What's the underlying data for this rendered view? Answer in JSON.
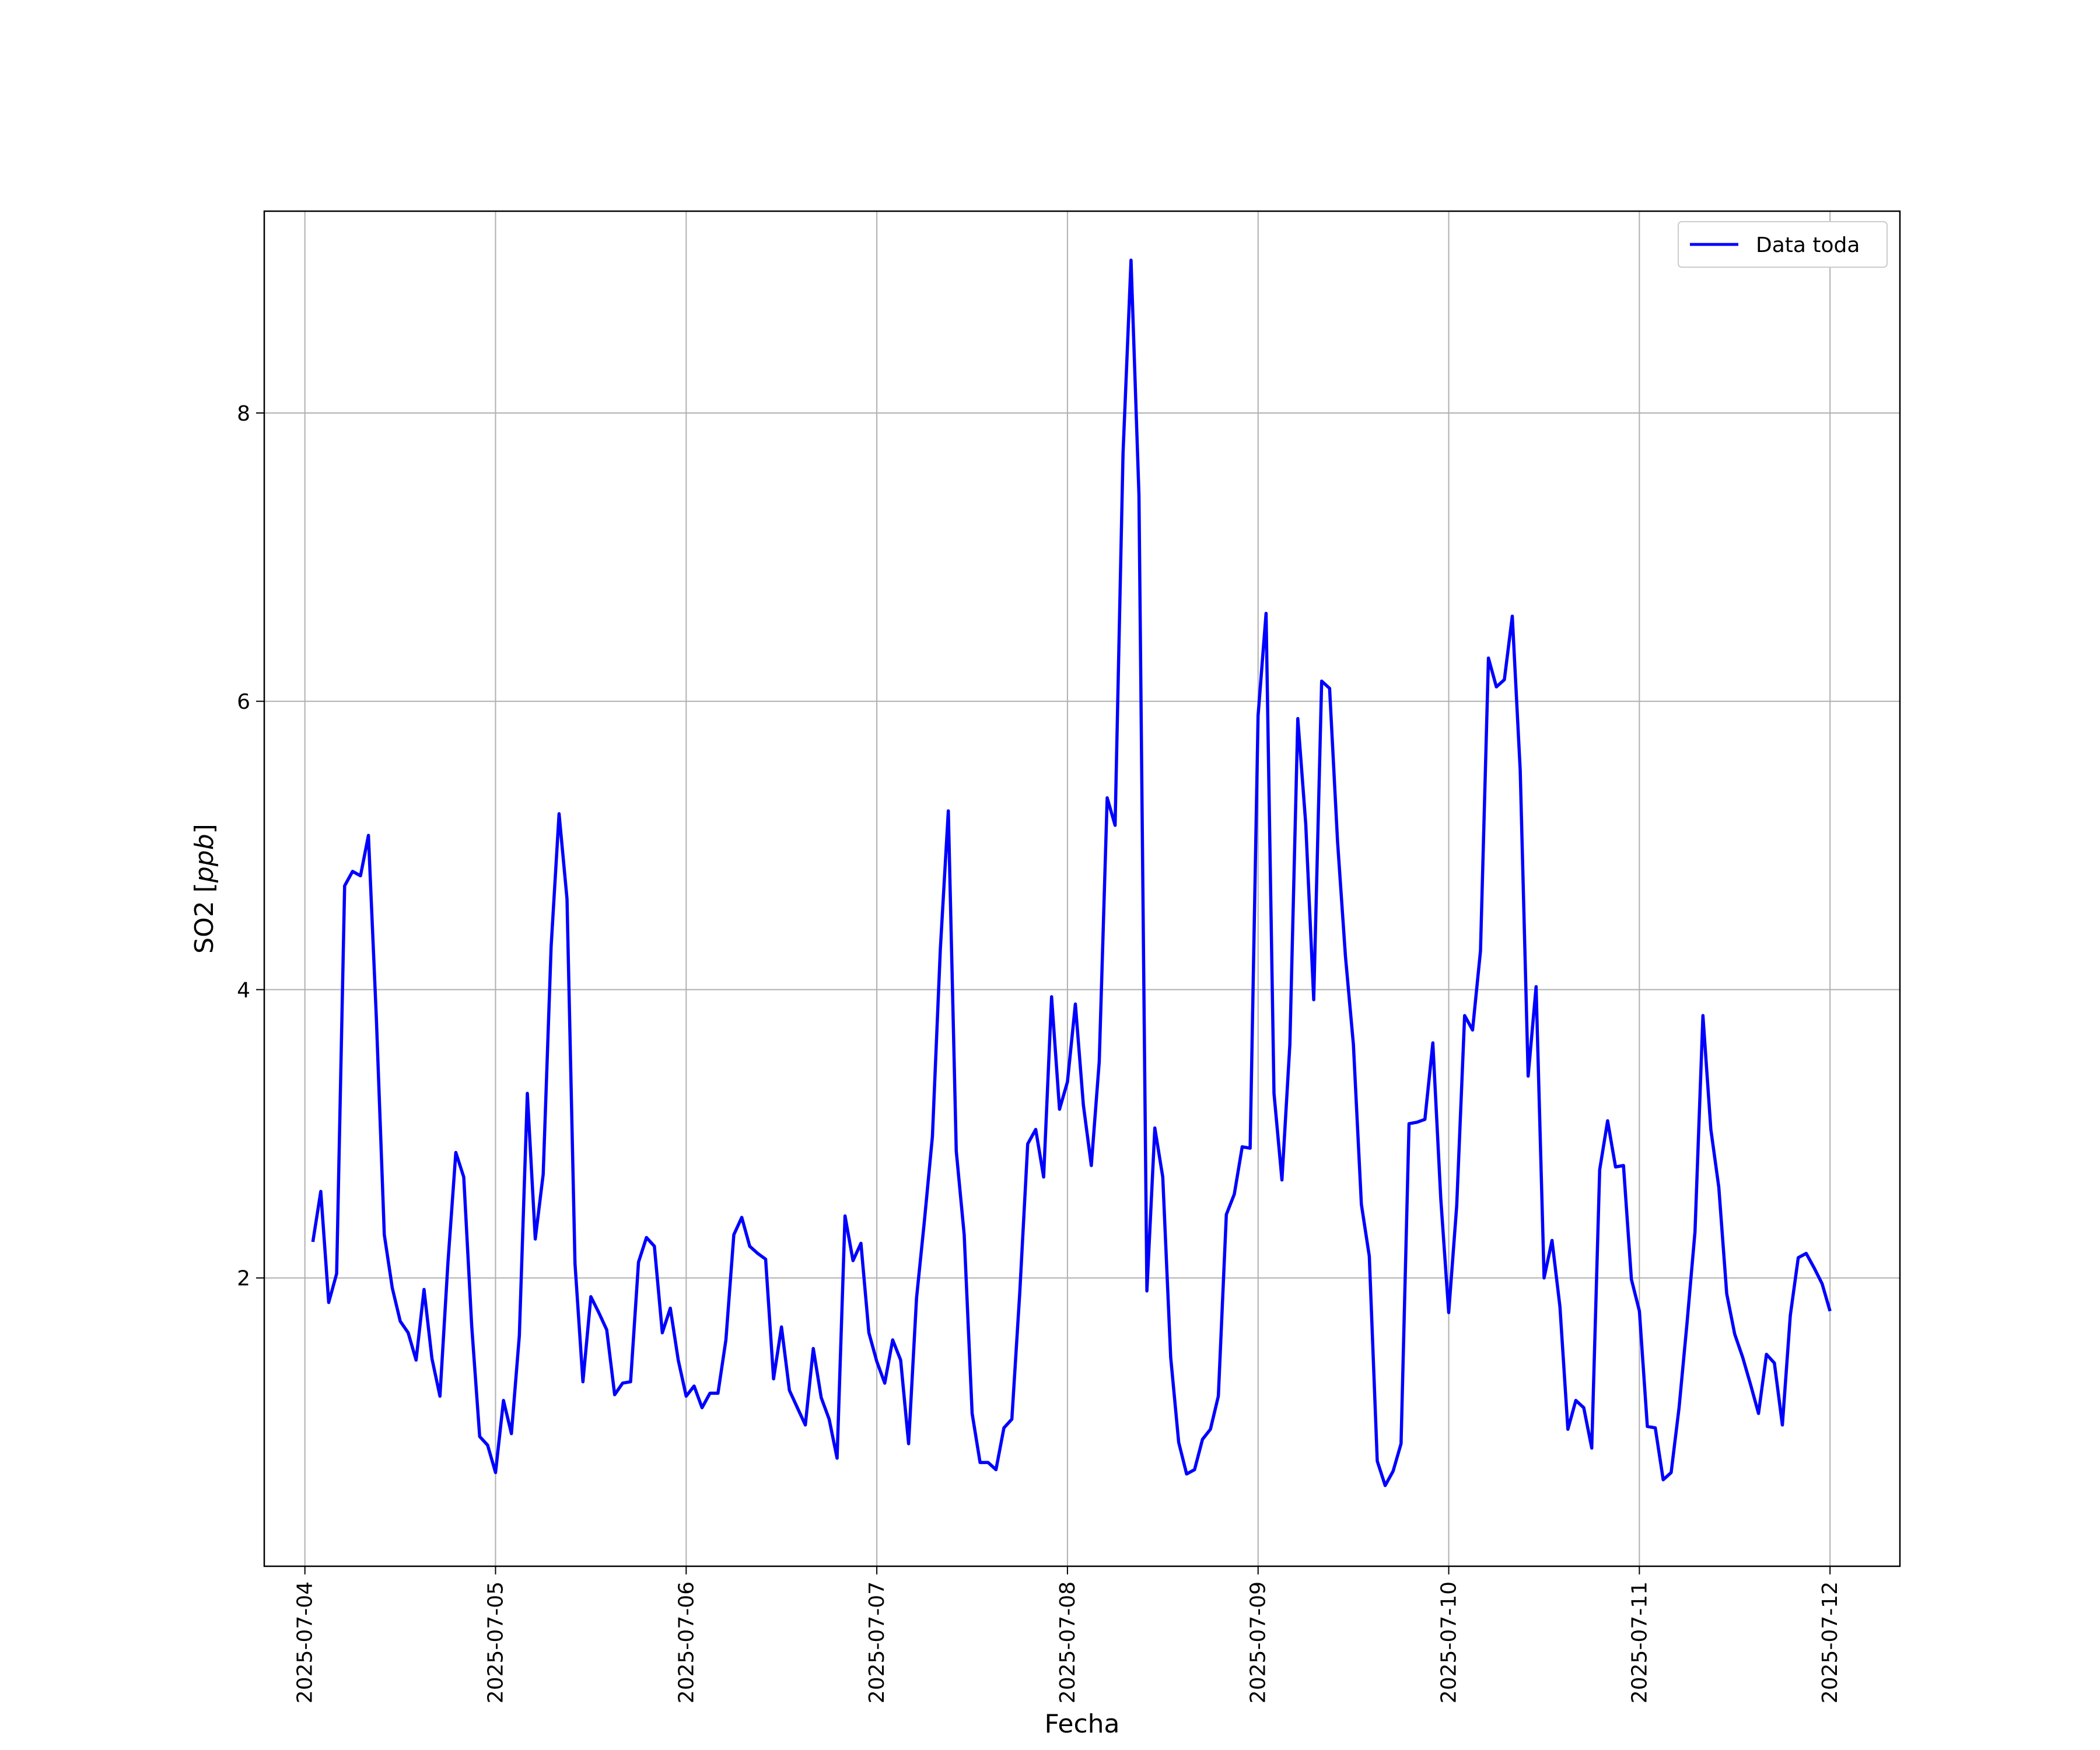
{
  "chart_data": {
    "type": "line",
    "title": "",
    "xlabel": "Fecha",
    "ylabel": "SO2 [ppb]",
    "ylabel_parts": {
      "prefix": "SO2 [",
      "unit": "ppb",
      "suffix": "]"
    },
    "x_axis_type": "date",
    "xlim": [
      "2025-07-03 18:53",
      "2025-07-12 08:48"
    ],
    "ylim": [
      0,
      9.4
    ],
    "grid": true,
    "legend_position": "upper right",
    "x_ticks": [
      "2025-07-04",
      "2025-07-05",
      "2025-07-06",
      "2025-07-07",
      "2025-07-08",
      "2025-07-09",
      "2025-07-10",
      "2025-07-11",
      "2025-07-12"
    ],
    "y_ticks": [
      2,
      4,
      6,
      8
    ],
    "series": [
      {
        "name": "Data toda",
        "color": "#0000ff",
        "x": [
          "2025-07-04 01:00",
          "2025-07-04 02:00",
          "2025-07-04 03:00",
          "2025-07-04 04:00",
          "2025-07-04 05:00",
          "2025-07-04 06:00",
          "2025-07-04 07:00",
          "2025-07-04 08:00",
          "2025-07-04 09:00",
          "2025-07-04 10:00",
          "2025-07-04 11:00",
          "2025-07-04 12:00",
          "2025-07-04 13:00",
          "2025-07-04 14:00",
          "2025-07-04 15:00",
          "2025-07-04 16:00",
          "2025-07-04 17:00",
          "2025-07-04 18:00",
          "2025-07-04 19:00",
          "2025-07-04 20:00",
          "2025-07-04 21:00",
          "2025-07-04 22:00",
          "2025-07-04 23:00",
          "2025-07-05 00:00",
          "2025-07-05 01:00",
          "2025-07-05 02:00",
          "2025-07-05 03:00",
          "2025-07-05 04:00",
          "2025-07-05 05:00",
          "2025-07-05 06:00",
          "2025-07-05 07:00",
          "2025-07-05 08:00",
          "2025-07-05 09:00",
          "2025-07-05 10:00",
          "2025-07-05 11:00",
          "2025-07-05 12:00",
          "2025-07-05 13:00",
          "2025-07-05 14:00",
          "2025-07-05 15:00",
          "2025-07-05 16:00",
          "2025-07-05 17:00",
          "2025-07-05 18:00",
          "2025-07-05 19:00",
          "2025-07-05 20:00",
          "2025-07-05 21:00",
          "2025-07-05 22:00",
          "2025-07-05 23:00",
          "2025-07-06 00:00",
          "2025-07-06 01:00",
          "2025-07-06 02:00",
          "2025-07-06 03:00",
          "2025-07-06 04:00",
          "2025-07-06 05:00",
          "2025-07-06 06:00",
          "2025-07-06 07:00",
          "2025-07-06 08:00",
          "2025-07-06 09:00",
          "2025-07-06 10:00",
          "2025-07-06 11:00",
          "2025-07-06 12:00",
          "2025-07-06 13:00",
          "2025-07-06 14:00",
          "2025-07-06 15:00",
          "2025-07-06 16:00",
          "2025-07-06 17:00",
          "2025-07-06 18:00",
          "2025-07-06 19:00",
          "2025-07-06 20:00",
          "2025-07-06 21:00",
          "2025-07-06 22:00",
          "2025-07-06 23:00",
          "2025-07-07 00:00",
          "2025-07-07 01:00",
          "2025-07-07 02:00",
          "2025-07-07 03:00",
          "2025-07-07 04:00",
          "2025-07-07 05:00",
          "2025-07-07 06:00",
          "2025-07-07 07:00",
          "2025-07-07 08:00",
          "2025-07-07 09:00",
          "2025-07-07 10:00",
          "2025-07-07 11:00",
          "2025-07-07 12:00",
          "2025-07-07 13:00",
          "2025-07-07 14:00",
          "2025-07-07 15:00",
          "2025-07-07 16:00",
          "2025-07-07 17:00",
          "2025-07-07 18:00",
          "2025-07-07 19:00",
          "2025-07-07 20:00",
          "2025-07-07 21:00",
          "2025-07-07 22:00",
          "2025-07-07 23:00",
          "2025-07-08 00:00",
          "2025-07-08 01:00",
          "2025-07-08 02:00",
          "2025-07-08 03:00",
          "2025-07-08 04:00",
          "2025-07-08 05:00",
          "2025-07-08 06:00",
          "2025-07-08 07:00",
          "2025-07-08 08:00",
          "2025-07-08 09:00",
          "2025-07-08 10:00",
          "2025-07-08 11:00",
          "2025-07-08 12:00",
          "2025-07-08 13:00",
          "2025-07-08 14:00",
          "2025-07-08 15:00",
          "2025-07-08 16:00",
          "2025-07-08 17:00",
          "2025-07-08 18:00",
          "2025-07-08 19:00",
          "2025-07-08 20:00",
          "2025-07-08 21:00",
          "2025-07-08 22:00",
          "2025-07-08 23:00",
          "2025-07-09 00:00",
          "2025-07-09 01:00",
          "2025-07-09 02:00",
          "2025-07-09 03:00",
          "2025-07-09 04:00",
          "2025-07-09 05:00",
          "2025-07-09 06:00",
          "2025-07-09 07:00",
          "2025-07-09 08:00",
          "2025-07-09 09:00",
          "2025-07-09 10:00",
          "2025-07-09 11:00",
          "2025-07-09 12:00",
          "2025-07-09 13:00",
          "2025-07-09 14:00",
          "2025-07-09 15:00",
          "2025-07-09 16:00",
          "2025-07-09 17:00",
          "2025-07-09 18:00",
          "2025-07-09 19:00",
          "2025-07-09 20:00",
          "2025-07-09 21:00",
          "2025-07-09 22:00",
          "2025-07-09 23:00",
          "2025-07-10 00:00",
          "2025-07-10 01:00",
          "2025-07-10 02:00",
          "2025-07-10 03:00",
          "2025-07-10 04:00",
          "2025-07-10 05:00",
          "2025-07-10 06:00",
          "2025-07-10 07:00",
          "2025-07-10 08:00",
          "2025-07-10 09:00",
          "2025-07-10 10:00",
          "2025-07-10 11:00",
          "2025-07-10 12:00",
          "2025-07-10 13:00",
          "2025-07-10 14:00",
          "2025-07-10 15:00",
          "2025-07-10 16:00",
          "2025-07-10 17:00",
          "2025-07-10 18:00",
          "2025-07-10 19:00",
          "2025-07-10 20:00",
          "2025-07-10 21:00",
          "2025-07-10 22:00",
          "2025-07-10 23:00",
          "2025-07-11 00:00",
          "2025-07-11 01:00",
          "2025-07-11 02:00",
          "2025-07-11 03:00",
          "2025-07-11 04:00",
          "2025-07-11 05:00",
          "2025-07-11 06:00",
          "2025-07-11 07:00",
          "2025-07-11 08:00",
          "2025-07-11 09:00",
          "2025-07-11 10:00",
          "2025-07-11 11:00",
          "2025-07-11 12:00",
          "2025-07-11 13:00",
          "2025-07-11 14:00",
          "2025-07-11 15:00",
          "2025-07-11 16:00",
          "2025-07-11 17:00",
          "2025-07-11 18:00",
          "2025-07-11 19:00",
          "2025-07-11 20:00",
          "2025-07-11 21:00",
          "2025-07-11 22:00",
          "2025-07-11 23:00",
          "2025-07-12 00:00"
        ],
        "y": [
          2.25,
          2.6,
          1.83,
          2.03,
          4.72,
          4.82,
          4.79,
          5.07,
          3.8,
          2.3,
          1.93,
          1.7,
          1.62,
          1.43,
          1.92,
          1.44,
          1.18,
          2.1,
          2.87,
          2.7,
          1.67,
          0.9,
          0.84,
          0.65,
          1.15,
          0.92,
          1.6,
          3.28,
          2.27,
          2.72,
          4.3,
          5.22,
          4.63,
          2.1,
          1.28,
          1.87,
          1.76,
          1.64,
          1.19,
          1.27,
          1.28,
          2.11,
          2.28,
          2.22,
          1.62,
          1.79,
          1.43,
          1.18,
          1.25,
          1.1,
          1.2,
          1.2,
          1.57,
          2.3,
          2.42,
          2.22,
          2.17,
          2.13,
          1.3,
          1.66,
          1.22,
          1.1,
          0.98,
          1.51,
          1.17,
          1.02,
          0.75,
          2.43,
          2.12,
          2.24,
          1.62,
          1.42,
          1.27,
          1.57,
          1.43,
          0.85,
          1.86,
          2.4,
          2.98,
          4.28,
          5.24,
          2.88,
          2.3,
          1.06,
          0.72,
          0.72,
          0.67,
          0.96,
          1.02,
          1.9,
          2.93,
          3.03,
          2.7,
          3.95,
          3.17,
          3.36,
          3.9,
          3.2,
          2.78,
          3.5,
          5.33,
          5.14,
          7.72,
          9.06,
          7.43,
          1.91,
          3.04,
          2.7,
          1.45,
          0.86,
          0.64,
          0.67,
          0.88,
          0.95,
          1.18,
          2.44,
          2.58,
          2.91,
          2.9,
          5.9,
          6.61,
          3.28,
          2.68,
          3.62,
          5.88,
          5.15,
          3.93,
          6.14,
          6.09,
          5.03,
          4.23,
          3.62,
          2.51,
          2.15,
          0.73,
          0.56,
          0.66,
          0.85,
          3.07,
          3.08,
          3.1,
          3.63,
          2.55,
          1.76,
          2.5,
          3.82,
          3.72,
          4.27,
          6.3,
          6.1,
          6.15,
          6.59,
          5.52,
          3.4,
          4.02,
          2.0,
          2.26,
          1.8,
          0.95,
          1.15,
          1.1,
          0.82,
          2.75,
          3.09,
          2.77,
          2.78,
          1.99,
          1.77,
          0.97,
          0.96,
          0.6,
          0.65,
          1.1,
          1.69,
          2.32,
          3.82,
          3.03,
          2.63,
          1.89,
          1.61,
          1.45,
          1.26,
          1.06,
          1.47,
          1.41,
          0.98,
          1.74,
          2.14,
          2.17,
          2.07,
          1.96,
          1.77
        ]
      }
    ]
  }
}
